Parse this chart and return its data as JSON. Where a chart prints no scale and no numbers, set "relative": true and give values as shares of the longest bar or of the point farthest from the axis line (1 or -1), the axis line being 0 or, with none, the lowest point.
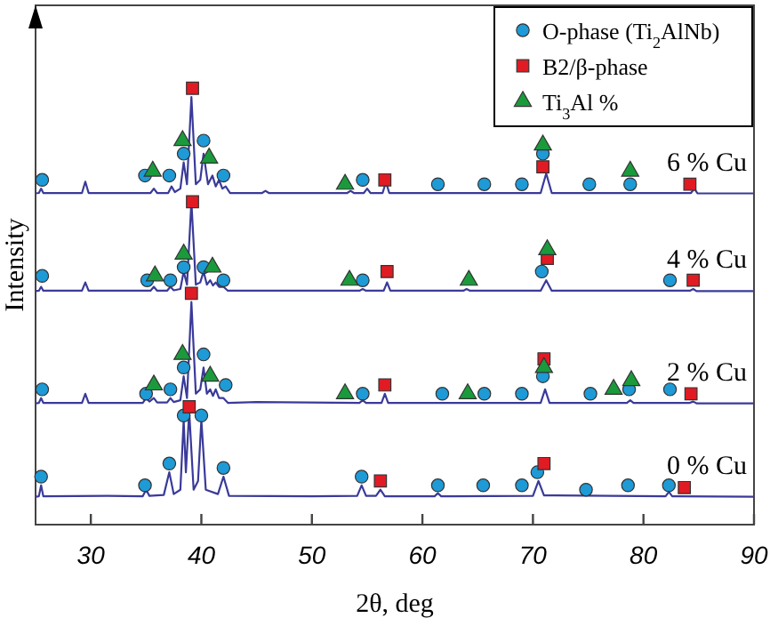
{
  "chart_data": {
    "type": "line",
    "xlabel": "2θ, deg",
    "ylabel": "Intensity",
    "xlim": [
      25,
      90
    ],
    "xticks": [
      30,
      40,
      50,
      60,
      70,
      80,
      90
    ],
    "relative": true,
    "tick_labels": "x",
    "grid": false,
    "legend": "top right",
    "line_style": "solid",
    "series": [
      {
        "name": "0 % Cu",
        "color": "#3a3a9a",
        "x": [
          25,
          25.3,
          25.5,
          25.7,
          31.5,
          34.7,
          35.0,
          35.3,
          36.6,
          37.1,
          37.5,
          38.1,
          38.4,
          38.6,
          38.9,
          39.3,
          39.7,
          40.0,
          40.4,
          41.5,
          42.0,
          42.5,
          50,
          54.1,
          54.5,
          54.9,
          55.8,
          56.2,
          56.6,
          61.1,
          61.4,
          61.7,
          70.0,
          70.5,
          71.0,
          72,
          82.0,
          82.3,
          82.6,
          90
        ],
        "values": [
          0.064,
          0.065,
          0.09,
          0.065,
          0.066,
          0.065,
          0.08,
          0.066,
          0.068,
          0.12,
          0.07,
          0.08,
          0.24,
          0.12,
          0.26,
          0.08,
          0.1,
          0.24,
          0.08,
          0.07,
          0.11,
          0.066,
          0.065,
          0.066,
          0.09,
          0.066,
          0.066,
          0.08,
          0.065,
          0.065,
          0.072,
          0.065,
          0.066,
          0.1,
          0.067,
          0.067,
          0.065,
          0.075,
          0.065,
          0.064
        ]
      },
      {
        "name": "2 % Cu",
        "color": "#3a3a9a",
        "x": [
          25,
          25.3,
          25.5,
          25.7,
          29.2,
          29.5,
          29.8,
          34.7,
          35.0,
          35.3,
          35.7,
          36.0,
          36.9,
          37.2,
          37.5,
          38.1,
          38.4,
          38.7,
          39.1,
          39.5,
          39.9,
          40.2,
          40.5,
          40.8,
          41.05,
          41.3,
          41.6,
          42.0,
          42.4,
          45,
          54.3,
          54.6,
          54.9,
          56.3,
          56.6,
          56.9,
          70.7,
          71.1,
          71.5,
          78.5,
          78.8,
          79.1,
          84.2,
          84.5,
          84.8,
          90
        ],
        "values": [
          0.278,
          0.279,
          0.29,
          0.279,
          0.279,
          0.3,
          0.279,
          0.279,
          0.29,
          0.282,
          0.29,
          0.28,
          0.28,
          0.29,
          0.281,
          0.285,
          0.34,
          0.29,
          0.51,
          0.3,
          0.31,
          0.36,
          0.3,
          0.31,
          0.295,
          0.31,
          0.29,
          0.29,
          0.279,
          0.281,
          0.279,
          0.285,
          0.279,
          0.279,
          0.3,
          0.279,
          0.279,
          0.31,
          0.279,
          0.279,
          0.285,
          0.279,
          0.279,
          0.282,
          0.278,
          0.278
        ]
      },
      {
        "name": "4 % Cu",
        "color": "#3a3a9a",
        "x": [
          25,
          25.3,
          25.5,
          25.7,
          29.2,
          29.5,
          29.8,
          35.4,
          35.7,
          36.0,
          36.9,
          37.2,
          37.5,
          38.1,
          38.4,
          38.7,
          39.1,
          39.5,
          39.9,
          40.2,
          40.5,
          40.8,
          41.05,
          41.3,
          41.6,
          42.0,
          42.4,
          54.3,
          54.6,
          54.9,
          56.5,
          56.8,
          57.1,
          63.7,
          64.0,
          64.3,
          70.7,
          71.2,
          71.7,
          84.2,
          84.5,
          84.8,
          90
        ],
        "values": [
          0.535,
          0.536,
          0.545,
          0.536,
          0.536,
          0.555,
          0.536,
          0.536,
          0.545,
          0.536,
          0.536,
          0.545,
          0.537,
          0.54,
          0.58,
          0.55,
          0.74,
          0.55,
          0.555,
          0.58,
          0.55,
          0.56,
          0.548,
          0.555,
          0.545,
          0.545,
          0.536,
          0.536,
          0.54,
          0.536,
          0.536,
          0.555,
          0.536,
          0.536,
          0.54,
          0.536,
          0.536,
          0.56,
          0.536,
          0.536,
          0.54,
          0.535,
          0.535
        ]
      },
      {
        "name": "6 % Cu",
        "color": "#3a3a9a",
        "x": [
          25,
          25.3,
          25.5,
          25.7,
          29.2,
          29.5,
          29.8,
          35.4,
          35.7,
          36.0,
          37.0,
          37.3,
          37.6,
          38.1,
          38.4,
          38.7,
          39.1,
          39.5,
          39.9,
          40.2,
          40.6,
          41.0,
          41.3,
          41.6,
          41.9,
          42.2,
          42.6,
          45.5,
          45.8,
          46.1,
          53.2,
          53.5,
          53.8,
          54.7,
          55.0,
          55.3,
          56.4,
          56.7,
          57.0,
          70.7,
          71.2,
          71.7,
          84.3,
          84.6,
          84.9,
          90
        ],
        "values": [
          0.759,
          0.76,
          0.77,
          0.76,
          0.76,
          0.786,
          0.76,
          0.76,
          0.77,
          0.76,
          0.76,
          0.775,
          0.762,
          0.77,
          0.83,
          0.78,
          0.98,
          0.78,
          0.79,
          0.85,
          0.78,
          0.8,
          0.775,
          0.79,
          0.77,
          0.775,
          0.76,
          0.76,
          0.765,
          0.76,
          0.76,
          0.765,
          0.76,
          0.76,
          0.77,
          0.76,
          0.76,
          0.785,
          0.76,
          0.76,
          0.805,
          0.76,
          0.76,
          0.77,
          0.759,
          0.759
        ]
      },
      {
        "type": "scatter",
        "name": "O-phase (Ti$_{2}$AlNb)",
        "color": "#1e9ad6",
        "marker": "circle",
        "x": [
          25.6,
          34.9,
          37.1,
          38.4,
          40.2,
          42.0,
          54.6,
          61.4,
          65.6,
          69.0,
          70.9,
          75.1,
          78.8,
          25.6,
          35.1,
          37.2,
          38.4,
          40.2,
          42.0,
          54.6,
          70.8,
          82.4,
          25.6,
          35.0,
          37.2,
          38.4,
          40.2,
          42.2,
          54.6,
          61.8,
          65.6,
          69.0,
          70.9,
          75.2,
          78.7,
          82.4,
          25.5,
          34.9,
          37.1,
          38.4,
          40.0,
          42.0,
          54.5,
          61.4,
          65.5,
          69.0,
          70.4,
          74.8,
          78.6,
          82.3
        ],
        "values": [
          0.79,
          0.8,
          0.8,
          0.85,
          0.88,
          0.8,
          0.79,
          0.78,
          0.78,
          0.78,
          0.85,
          0.78,
          0.78,
          0.57,
          0.56,
          0.56,
          0.59,
          0.59,
          0.56,
          0.56,
          0.58,
          0.56,
          0.31,
          0.3,
          0.31,
          0.36,
          0.39,
          0.32,
          0.3,
          0.3,
          0.3,
          0.3,
          0.34,
          0.3,
          0.31,
          0.31,
          0.11,
          0.09,
          0.14,
          0.25,
          0.25,
          0.13,
          0.11,
          0.09,
          0.09,
          0.09,
          0.12,
          0.08,
          0.09,
          0.09
        ]
      },
      {
        "type": "scatter",
        "name": "B2/β-phase",
        "color": "#e01b24",
        "marker": "square",
        "x": [
          39.2,
          56.6,
          70.9,
          84.2,
          39.2,
          56.8,
          71.3,
          84.5,
          39.1,
          56.6,
          71.0,
          84.3,
          38.9,
          56.2,
          71.0,
          83.7
        ],
        "values": [
          1,
          0.79,
          0.82,
          0.78,
          0.74,
          0.58,
          0.61,
          0.56,
          0.53,
          0.32,
          0.38,
          0.3,
          0.27,
          0.1,
          0.14,
          0.085
        ]
      },
      {
        "type": "scatter",
        "name": "Ti$_{3}$Al %",
        "color": "#1b9a3c",
        "marker": "triangle",
        "x": [
          35.6,
          38.3,
          40.7,
          53.0,
          70.9,
          78.8,
          35.8,
          38.4,
          41.0,
          53.4,
          64.2,
          71.3,
          35.7,
          38.3,
          40.8,
          53.0,
          64.1,
          71.0,
          77.3,
          78.9
        ],
        "values": [
          0.81,
          0.88,
          0.84,
          0.78,
          0.87,
          0.81,
          0.57,
          0.62,
          0.59,
          0.56,
          0.56,
          0.63,
          0.32,
          0.39,
          0.34,
          0.3,
          0.3,
          0.36,
          0.31,
          0.33
        ]
      }
    ]
  }
}
